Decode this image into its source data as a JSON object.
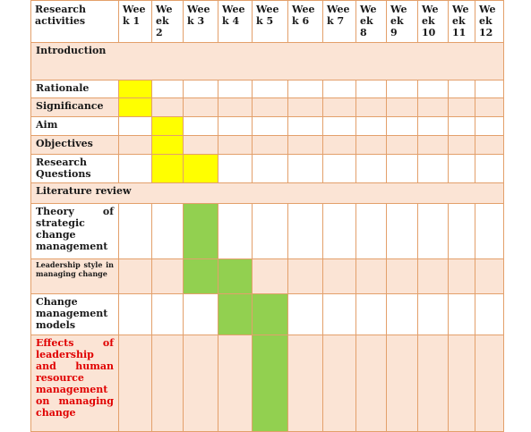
{
  "table": {
    "corner_header": "Research activities",
    "week_headers": [
      "Wee k 1",
      "We ek 2",
      "Wee k 3",
      "Wee k 4",
      "Wee k 5",
      "Wee k 6",
      "Wee k 7",
      "We ek 8",
      "We ek 9",
      "We ek 10",
      "We ek 11",
      "We ek 12"
    ],
    "rows": [
      {
        "label": "Introduction",
        "type": "section",
        "weeks": []
      },
      {
        "label": "Rationale",
        "type": "activity",
        "weeks": [
          1
        ],
        "color": "yellow"
      },
      {
        "label": "Significance",
        "type": "activity",
        "weeks": [
          1
        ],
        "color": "yellow"
      },
      {
        "label": "Aim",
        "type": "activity",
        "weeks": [
          2
        ],
        "color": "yellow"
      },
      {
        "label": "Objectives",
        "type": "activity",
        "weeks": [
          2
        ],
        "color": "yellow"
      },
      {
        "label": "Research Questions",
        "type": "activity",
        "weeks": [
          2,
          3
        ],
        "color": "yellow"
      },
      {
        "label": "Literature review",
        "type": "section",
        "weeks": []
      },
      {
        "label": "Theory of strategic change management",
        "type": "activity",
        "weeks": [
          3
        ],
        "color": "green"
      },
      {
        "label": "Leadership style in managing change",
        "type": "activity",
        "weeks": [
          3,
          4
        ],
        "color": "green",
        "small": true
      },
      {
        "label": "Change management models",
        "type": "activity",
        "weeks": [
          4,
          5
        ],
        "color": "green"
      },
      {
        "label": "Effects of leadership and human resource management on managing change",
        "type": "activity",
        "weeks": [
          5
        ],
        "color": "green",
        "red": true
      }
    ]
  },
  "colors": {
    "yellow": "#ffff00",
    "green": "#92d050",
    "peach": "#fbe4d5",
    "white": "#ffffff",
    "border": "#e3a06b",
    "red_text": "#e00000"
  }
}
